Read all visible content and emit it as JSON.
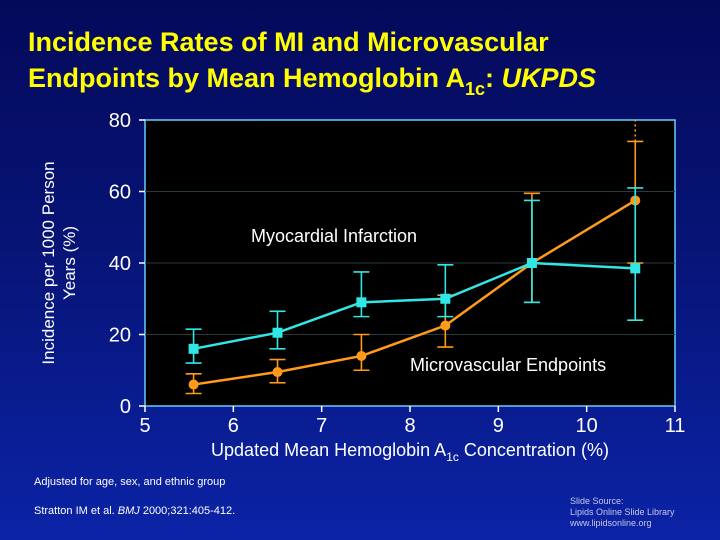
{
  "slide": {
    "title_line1": "Incidence Rates of MI and Microvascular",
    "title_line2_pre": "Endpoints by Mean Hemoglobin A",
    "title_line2_sub": "1c",
    "title_line2_colon": ": ",
    "title_line2_italic": "UKPDS",
    "note_adjusted": "Adjusted for age, sex, and ethnic group",
    "citation_pre": "Stratton IM et al. ",
    "citation_journal": "BMJ",
    "citation_post": " 2000;321:405-412.",
    "source_line1": "Slide Source:",
    "source_line2": "Lipids Online Slide Library",
    "source_line3": "www.lipidsonline.org"
  },
  "chart_data": {
    "type": "line",
    "xlabel_pre": "Updated Mean Hemoglobin A",
    "xlabel_sub": "1c",
    "xlabel_post": " Concentration (%)",
    "ylabel_line1": "Incidence per 1000 Person",
    "ylabel_line2": "Years (%)",
    "xlim": [
      5,
      11
    ],
    "ylim": [
      0,
      80
    ],
    "x_ticks": [
      5,
      6,
      7,
      8,
      9,
      10,
      11
    ],
    "y_ticks": [
      0,
      20,
      40,
      60,
      80
    ],
    "grid": "horizontal",
    "series": [
      {
        "name": "Myocardial Infarction",
        "color": "#33e6e6",
        "marker": "square",
        "x": [
          5.55,
          6.5,
          7.45,
          8.4,
          9.38,
          10.55
        ],
        "y": [
          16,
          20.5,
          29,
          30,
          40,
          38.5
        ],
        "err_low": [
          12,
          16,
          25,
          25,
          29,
          24
        ],
        "err_high": [
          21.5,
          26.5,
          37.5,
          39.5,
          57.5,
          61
        ]
      },
      {
        "name": "Microvascular Endpoints",
        "color": "#ff9a1a",
        "marker": "circle",
        "x": [
          5.55,
          6.5,
          7.45,
          8.4,
          9.38,
          10.55
        ],
        "y": [
          6,
          9.5,
          14,
          22.5,
          40,
          57.5
        ],
        "err_low": [
          3.5,
          6.5,
          10,
          16.5,
          29,
          40
        ],
        "err_high": [
          9,
          13,
          20,
          31,
          59.5,
          74
        ]
      }
    ]
  }
}
